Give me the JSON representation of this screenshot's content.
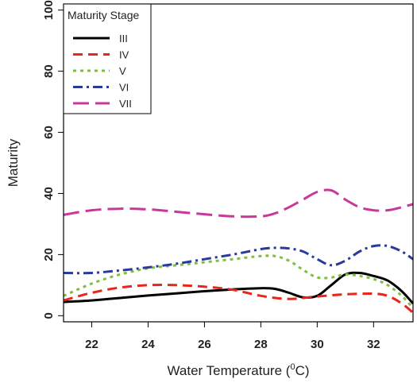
{
  "chart_data": {
    "type": "line",
    "title": "",
    "xlabel": "Water Temperature (",
    "xlabel_sup": "0",
    "xlabel_end": "C)",
    "ylabel": "Maturity",
    "xlim": [
      21,
      33.4
    ],
    "ylim": [
      -2,
      102
    ],
    "xticks": [
      22,
      24,
      26,
      28,
      30,
      32
    ],
    "yticks": [
      0,
      20,
      40,
      60,
      80,
      100
    ],
    "grid": false,
    "legend": {
      "title": "Maturity Stage",
      "position": "top-left"
    },
    "series": [
      {
        "name": "III",
        "color": "#000000",
        "dash": "solid",
        "x": [
          21,
          22,
          23,
          24,
          25,
          26,
          27,
          28,
          28.5,
          29,
          29.5,
          30,
          30.5,
          31,
          31.5,
          32,
          32.5,
          33,
          33.4
        ],
        "y": [
          4.5,
          5,
          5.8,
          6.6,
          7.3,
          8,
          8.6,
          9,
          8.8,
          7.5,
          6,
          6.5,
          10,
          13.5,
          14,
          13,
          11.5,
          8,
          4
        ]
      },
      {
        "name": "IV",
        "color": "#e8261b",
        "dash": "dashed",
        "x": [
          21,
          22,
          23,
          24,
          25,
          26,
          27,
          28,
          29,
          30,
          31,
          32,
          32.5,
          33,
          33.4
        ],
        "y": [
          5,
          7.5,
          9.2,
          10,
          10,
          9.5,
          8.5,
          6.5,
          5.5,
          6.3,
          7,
          7.2,
          6.5,
          4,
          1
        ]
      },
      {
        "name": "V",
        "color": "#7fbf3f",
        "dash": "dotted",
        "x": [
          21,
          22,
          23,
          24,
          25,
          26,
          27,
          28,
          28.5,
          29,
          29.5,
          30,
          30.5,
          31,
          31.5,
          32,
          32.5,
          33,
          33.4
        ],
        "y": [
          6.5,
          10.5,
          13.5,
          15.5,
          16.5,
          17.5,
          18.5,
          19.5,
          19.5,
          18,
          15,
          12.5,
          12.5,
          13.5,
          13,
          12,
          10,
          6.5,
          2.5
        ]
      },
      {
        "name": "VI",
        "color": "#2a3a9a",
        "dash": "dashdot",
        "x": [
          21,
          22,
          23,
          24,
          25,
          26,
          27,
          28,
          28.5,
          29,
          29.5,
          30,
          30.5,
          31,
          31.5,
          32,
          32.5,
          33,
          33.4
        ],
        "y": [
          14,
          14,
          14.8,
          15.8,
          17,
          18.5,
          20,
          21.8,
          22.2,
          22,
          21,
          18.5,
          16.5,
          18,
          21,
          22.8,
          22.8,
          21,
          18.5
        ]
      },
      {
        "name": "VII",
        "color": "#c8389a",
        "dash": "longdash",
        "x": [
          21,
          22,
          23,
          24,
          25,
          26,
          27,
          28,
          28.5,
          29,
          29.5,
          30,
          30.5,
          31,
          31.5,
          32,
          32.5,
          33,
          33.4
        ],
        "y": [
          33,
          34.5,
          35,
          34.8,
          34,
          33.2,
          32.5,
          32.5,
          33.5,
          35.5,
          38,
          40.5,
          41,
          38,
          35.5,
          34.5,
          34.5,
          35.5,
          36.5
        ]
      }
    ]
  }
}
